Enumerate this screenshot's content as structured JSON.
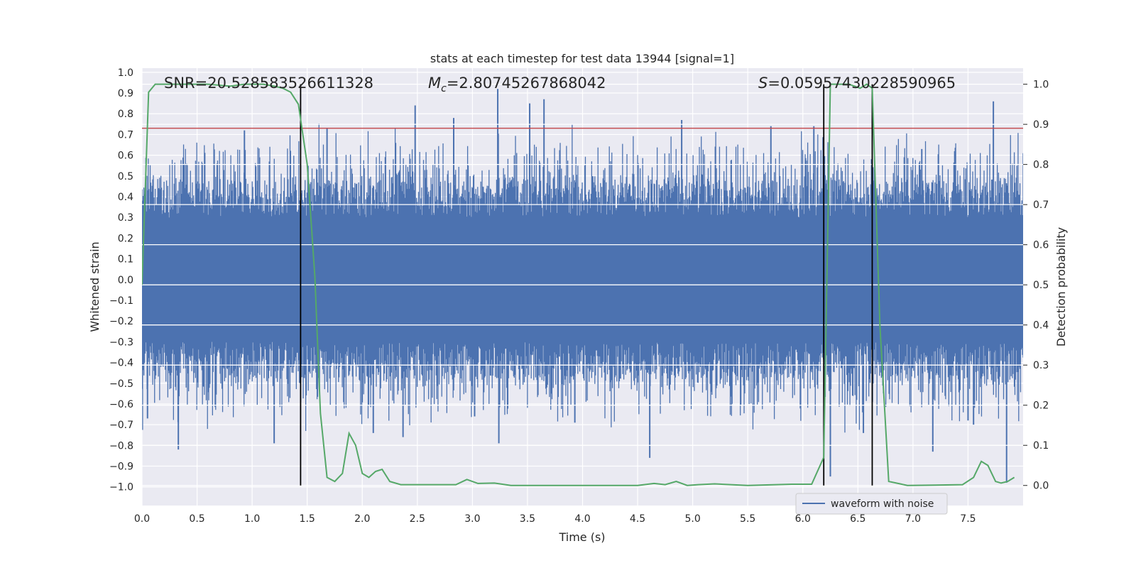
{
  "chart_data": {
    "type": "line",
    "title": "stats at each timestep for test data 13944 [signal=1]",
    "xlabel": "Time (s)",
    "ylabel_left": "Whitened strain",
    "ylabel_right": "Detection probability",
    "xlim": [
      0,
      8
    ],
    "ylim_left": [
      -1.09,
      1.02
    ],
    "ylim_right": [
      -0.05,
      1.04
    ],
    "x_ticks": [
      0,
      0.5,
      1,
      1.5,
      2,
      2.5,
      3,
      3.5,
      4,
      4.5,
      5,
      5.5,
      6,
      6.5,
      7,
      7.5
    ],
    "x_tick_labels": [
      "0.0",
      "0.5",
      "1.0",
      "1.5",
      "2.0",
      "2.5",
      "3.0",
      "3.5",
      "4.0",
      "4.5",
      "5.0",
      "5.5",
      "6.0",
      "6.5",
      "7.0",
      "7.5"
    ],
    "y_left_ticks": [
      -1.0,
      -0.9,
      -0.8,
      -0.7,
      -0.6,
      -0.5,
      -0.4,
      -0.3,
      -0.2,
      -0.1,
      0.0,
      0.1,
      0.2,
      0.3,
      0.4,
      0.5,
      0.6,
      0.7,
      0.8,
      0.9,
      1.0
    ],
    "y_left_tick_labels": [
      "−1.0",
      "−0.9",
      "−0.8",
      "−0.7",
      "−0.6",
      "−0.5",
      "−0.4",
      "−0.3",
      "−0.2",
      "−0.1",
      "0.0",
      "0.1",
      "0.2",
      "0.3",
      "0.4",
      "0.5",
      "0.6",
      "0.7",
      "0.8",
      "0.9",
      "1.0"
    ],
    "y_right_ticks": [
      0.0,
      0.1,
      0.2,
      0.3,
      0.4,
      0.5,
      0.6,
      0.7,
      0.8,
      0.9,
      1.0
    ],
    "y_right_tick_labels": [
      "0.0",
      "0.1",
      "0.2",
      "0.3",
      "0.4",
      "0.5",
      "0.6",
      "0.7",
      "0.8",
      "0.9",
      "1.0"
    ],
    "grid": true,
    "legend": {
      "position": "lower-right",
      "entries": [
        "waveform with noise"
      ]
    },
    "annotations": {
      "snr": "SNR=20.528583526611328",
      "mc_symbol": "M",
      "mc_sub": "c",
      "mc_value": "=2.80745267868042",
      "s_symbol": "S",
      "s_value": "=0.05957430228590965"
    },
    "threshold": {
      "axis": "left",
      "value": 0.73,
      "color": "#c44e52"
    },
    "vertical_markers": [
      1.44,
      6.19,
      6.63
    ],
    "waveform": {
      "name": "waveform with noise",
      "color": "#4c72b0",
      "duration_s": 8,
      "samples": 1400,
      "core_amplitude": 0.3,
      "spikes": [
        {
          "t": 0.05,
          "v": -0.67
        },
        {
          "t": 0.33,
          "v": -0.82
        },
        {
          "t": 0.93,
          "v": 0.72
        },
        {
          "t": 1.2,
          "v": -0.79
        },
        {
          "t": 1.68,
          "v": 0.73
        },
        {
          "t": 2.1,
          "v": -0.74
        },
        {
          "t": 2.37,
          "v": -0.76
        },
        {
          "t": 2.83,
          "v": 0.78
        },
        {
          "t": 3.02,
          "v": -0.66
        },
        {
          "t": 3.23,
          "v": 0.92
        },
        {
          "t": 3.24,
          "v": -0.79
        },
        {
          "t": 3.52,
          "v": 0.85
        },
        {
          "t": 3.65,
          "v": 0.87
        },
        {
          "t": 3.93,
          "v": -0.69
        },
        {
          "t": 4.9,
          "v": 0.77
        },
        {
          "t": 4.61,
          "v": -0.86
        },
        {
          "t": 5.71,
          "v": 0.74
        },
        {
          "t": 6.1,
          "v": 0.74
        },
        {
          "t": 6.25,
          "v": -0.95
        },
        {
          "t": 6.55,
          "v": -0.74
        },
        {
          "t": 7.08,
          "v": 0.63
        },
        {
          "t": 7.18,
          "v": -0.83
        },
        {
          "t": 7.5,
          "v": -0.68
        },
        {
          "t": 7.73,
          "v": 0.86
        },
        {
          "t": 7.85,
          "v": -0.98
        },
        {
          "t": 7.55,
          "v": -0.7
        },
        {
          "t": 2.48,
          "v": 0.84
        }
      ]
    },
    "detection_probability": {
      "color": "#55a868",
      "x": [
        0.0,
        0.06,
        0.12,
        0.2,
        0.4,
        0.6,
        0.8,
        0.93,
        1.1,
        1.2,
        1.28,
        1.35,
        1.42,
        1.5,
        1.57,
        1.62,
        1.68,
        1.75,
        1.82,
        1.88,
        1.94,
        2.0,
        2.06,
        2.12,
        2.18,
        2.25,
        2.35,
        2.6,
        2.85,
        2.95,
        3.05,
        3.2,
        3.35,
        3.6,
        4.0,
        4.5,
        4.65,
        4.75,
        4.85,
        4.95,
        5.05,
        5.2,
        5.5,
        5.9,
        6.08,
        6.19,
        6.25,
        6.32,
        6.42,
        6.52,
        6.58,
        6.63,
        6.7,
        6.78,
        6.95,
        7.2,
        7.45,
        7.55,
        7.62,
        7.68,
        7.75,
        7.8,
        7.86,
        7.92
      ],
      "y": [
        0.5,
        0.98,
        1.0,
        1.0,
        1.0,
        1.0,
        0.995,
        1.0,
        1.0,
        0.995,
        0.99,
        0.98,
        0.95,
        0.8,
        0.52,
        0.18,
        0.02,
        0.01,
        0.03,
        0.13,
        0.1,
        0.03,
        0.02,
        0.035,
        0.04,
        0.01,
        0.002,
        0.002,
        0.002,
        0.015,
        0.005,
        0.006,
        0.0,
        0.0,
        0.0,
        0.0,
        0.005,
        0.002,
        0.01,
        0.0,
        0.002,
        0.004,
        0.0,
        0.003,
        0.003,
        0.07,
        1.0,
        1.0,
        1.0,
        0.99,
        1.0,
        0.99,
        0.4,
        0.01,
        0.0,
        0.001,
        0.002,
        0.02,
        0.06,
        0.05,
        0.01,
        0.006,
        0.01,
        0.02
      ]
    }
  }
}
